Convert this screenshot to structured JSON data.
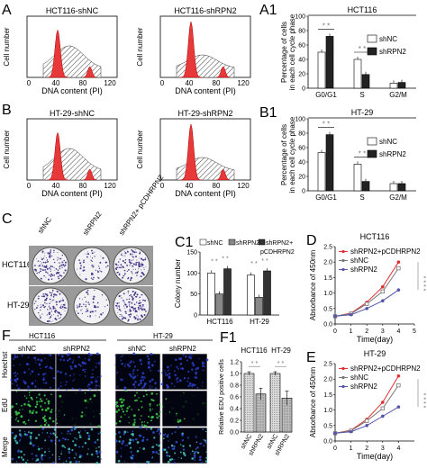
{
  "panels": {
    "A": {
      "letter": "A",
      "histograms": [
        {
          "title": "HCT116-shNC",
          "ylabel": "Cell number",
          "xlabel": "DNA content (PI)",
          "ticks": [
            "0",
            "40",
            "80",
            "120"
          ]
        },
        {
          "title": "HCT116-shRPN2",
          "ylabel": "Cell number",
          "xlabel": "DNA content (PI)",
          "ticks": [
            "0",
            "40",
            "80",
            "120"
          ]
        }
      ]
    },
    "B": {
      "letter": "B",
      "histograms": [
        {
          "title": "HT-29-shNC",
          "ylabel": "Cell number",
          "xlabel": "DNA content (PI)",
          "ticks": [
            "0",
            "40",
            "80",
            "120"
          ]
        },
        {
          "title": "HT-29-shRPN2",
          "ylabel": "Cell number",
          "xlabel": "DNA content (PI)",
          "ticks": [
            "0",
            "40",
            "80",
            "120"
          ]
        }
      ]
    },
    "C": {
      "letter": "C",
      "col_labels": [
        "shNC",
        "shRPN2",
        "shRPN2+ pCDHRPN2"
      ],
      "row_labels": [
        "HCT116",
        "HT-29"
      ]
    },
    "F": {
      "letter": "F",
      "group_labels": [
        "HCT116",
        "HT-29"
      ],
      "col_labels": [
        "shNC",
        "shRPN2",
        "shNC",
        "shRPN2"
      ],
      "row_labels": [
        "Hoechst",
        "EdU",
        "Merge"
      ]
    }
  },
  "chart_data": [
    {
      "id": "A1",
      "type": "bar",
      "letter": "A1",
      "title": "HCT116",
      "ylabel": "Percentage of cells in each cell cycle phase",
      "categories": [
        "G0/G1",
        "S",
        "G2/M"
      ],
      "series": [
        {
          "name": "shNC",
          "values": [
            50,
            40,
            7
          ]
        },
        {
          "name": "shRPN2",
          "values": [
            72,
            19,
            8
          ]
        }
      ],
      "ylim": [
        0,
        100
      ],
      "yticks": [
        "0",
        "20",
        "40",
        "60",
        "80",
        "100"
      ],
      "significance": [
        "* *",
        "* *"
      ],
      "legend_position": "right"
    },
    {
      "id": "B1",
      "type": "bar",
      "letter": "B1",
      "title": "HT-29",
      "ylabel": "Percentage of cells in each cell cycle phase",
      "categories": [
        "G0/G1",
        "S",
        "G2/M"
      ],
      "series": [
        {
          "name": "shNC",
          "values": [
            53,
            37,
            10
          ]
        },
        {
          "name": "shRPN2",
          "values": [
            78,
            13,
            10
          ]
        }
      ],
      "ylim": [
        0,
        100
      ],
      "yticks": [
        "0",
        "20",
        "40",
        "60",
        "80",
        "100"
      ],
      "significance": [
        "* *",
        "* *"
      ],
      "legend_position": "right"
    },
    {
      "id": "C1",
      "type": "bar",
      "letter": "C1",
      "ylabel": "Colony number",
      "categories": [
        "HCT116",
        "HT-29"
      ],
      "series": [
        {
          "name": "shNC",
          "values": [
            100,
            95
          ]
        },
        {
          "name": "shRPN2",
          "values": [
            50,
            42
          ]
        },
        {
          "name": "shRPN2+ pCDHRPN2",
          "values": [
            110,
            105
          ]
        }
      ],
      "legend_labels": [
        "shNC",
        "shRPN2",
        "shRPN2+",
        "pCDHRPN2"
      ],
      "ylim": [
        0,
        150
      ],
      "yticks": [
        "0",
        "50",
        "100",
        "150"
      ],
      "significance": [
        "* *",
        "* *",
        "* *",
        "* *"
      ]
    },
    {
      "id": "D",
      "type": "line",
      "letter": "D",
      "title": "HCT116",
      "xlabel": "Time(day)",
      "ylabel": "Absorbance of 450nm",
      "x": [
        0,
        1,
        2,
        3,
        4
      ],
      "series": [
        {
          "name": "shRPN2+pCDHRPN2",
          "values": [
            0.25,
            0.35,
            0.7,
            1.2,
            2.0
          ],
          "color": "#e03030"
        },
        {
          "name": "shNC",
          "values": [
            0.25,
            0.33,
            0.65,
            1.05,
            1.8
          ],
          "color": "#777777"
        },
        {
          "name": "shRPN2",
          "values": [
            0.25,
            0.3,
            0.5,
            0.75,
            1.1
          ],
          "color": "#5555aa"
        }
      ],
      "xlim": [
        0,
        5
      ],
      "ylim": [
        0,
        2.5
      ],
      "xticks": [
        "0",
        "1",
        "2",
        "3",
        "4",
        "5"
      ],
      "yticks": [
        "0.0",
        "0.5",
        "1.0",
        "1.5",
        "2.0",
        "2.5"
      ],
      "significance": "* * * *"
    },
    {
      "id": "E",
      "type": "line",
      "letter": "E",
      "title": "HT-29",
      "xlabel": "Time(day)",
      "ylabel": "Absorbance of 450nm",
      "x": [
        0,
        1,
        2,
        3,
        4
      ],
      "series": [
        {
          "name": "shRPN2+pCDHRPN2",
          "values": [
            0.25,
            0.35,
            0.7,
            1.25,
            2.1
          ],
          "color": "#e03030"
        },
        {
          "name": "shNC",
          "values": [
            0.25,
            0.33,
            0.65,
            1.05,
            1.8
          ],
          "color": "#777777"
        },
        {
          "name": "shRPN2",
          "values": [
            0.25,
            0.3,
            0.5,
            0.8,
            1.1
          ],
          "color": "#5555aa"
        }
      ],
      "xlim": [
        0,
        5
      ],
      "ylim": [
        0,
        2.5
      ],
      "xticks": [
        "0",
        "1",
        "2",
        "3",
        "4"
      ],
      "yticks": [
        "0.0",
        "0.5",
        "1.0",
        "1.5",
        "2.0",
        "2.5"
      ],
      "significance": "* * * *"
    },
    {
      "id": "F1",
      "type": "bar",
      "letter": "F1",
      "ylabel": "Relative EDU positive cells",
      "groups": [
        "HCT116",
        "HT-29"
      ],
      "categories": [
        "shNC",
        "shRPN2",
        "shNC",
        "shRPN2"
      ],
      "values": [
        1.0,
        0.65,
        1.0,
        0.58
      ],
      "errors": [
        0.03,
        0.1,
        0.03,
        0.12
      ],
      "ylim": [
        0,
        1.2
      ],
      "yticks": [
        "0.0",
        "0.2",
        "0.4",
        "0.6",
        "0.8",
        "1.0",
        "1.2"
      ],
      "significance": [
        "* *",
        "* *"
      ]
    }
  ]
}
